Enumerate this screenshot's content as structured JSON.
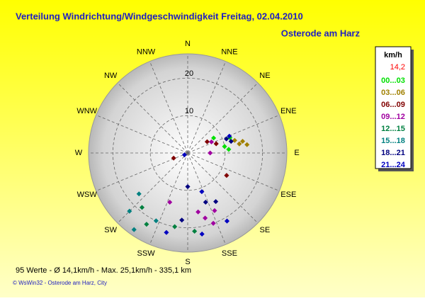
{
  "chart_data": {
    "type": "polar-scatter",
    "title": "Verteilung Windrichtung/Windgeschwindigkeit  Freitag, 02.04.2010",
    "subtitle": "Osterode am Harz",
    "directions": [
      "N",
      "NNE",
      "NE",
      "ENE",
      "E",
      "ESE",
      "SE",
      "SSE",
      "S",
      "SSW",
      "SW",
      "WSW",
      "W",
      "WNW",
      "NW",
      "NNW"
    ],
    "rlim": [
      0,
      26.5
    ],
    "rticks": [
      10,
      20
    ],
    "legend_title": "km/h",
    "legend_current": "14,2",
    "legend_current_color": "#ff0000",
    "series": [
      {
        "name": "00...03",
        "color": "#00e000",
        "dir": [
          70,
          80,
          85,
          60
        ],
        "speed": [
          12,
          10,
          11,
          8
        ]
      },
      {
        "name": "03...06",
        "color": "#a08000",
        "dir": [
          78,
          80,
          82,
          75
        ],
        "speed": [
          15,
          14,
          16,
          13
        ]
      },
      {
        "name": "06...09",
        "color": "#800000",
        "dir": [
          72,
          60,
          250,
          120
        ],
        "speed": [
          8,
          6,
          4,
          12
        ]
      },
      {
        "name": "09...12",
        "color": "#a000a0",
        "dir": [
          65,
          90,
          165,
          160,
          170,
          155,
          200
        ],
        "speed": [
          7,
          6,
          18,
          20,
          16,
          17,
          14
        ]
      },
      {
        "name": "12...15",
        "color": "#008040",
        "dir": [
          175,
          210,
          220,
          190
        ],
        "speed": [
          21,
          22,
          19,
          20
        ]
      },
      {
        "name": "15...18",
        "color": "#008080",
        "dir": [
          215,
          205,
          225,
          230
        ],
        "speed": [
          25,
          20,
          22,
          17
        ]
      },
      {
        "name": "18...21",
        "color": "#000080",
        "dir": [
          70,
          75,
          185,
          160,
          150,
          180
        ],
        "speed": [
          11,
          12,
          18,
          14,
          15,
          9
        ]
      },
      {
        "name": "21...24",
        "color": "#0000c0",
        "dir": [
          68,
          150,
          195,
          170,
          240,
          160
        ],
        "speed": [
          12,
          21,
          22,
          22,
          1,
          11
        ]
      }
    ],
    "footer": "95 Werte   -   Ø 14,1km/h   -   Max. 25,1km/h   -   335,1 km",
    "credit": "© WsWin32  -  Osterode am Harz, City"
  }
}
